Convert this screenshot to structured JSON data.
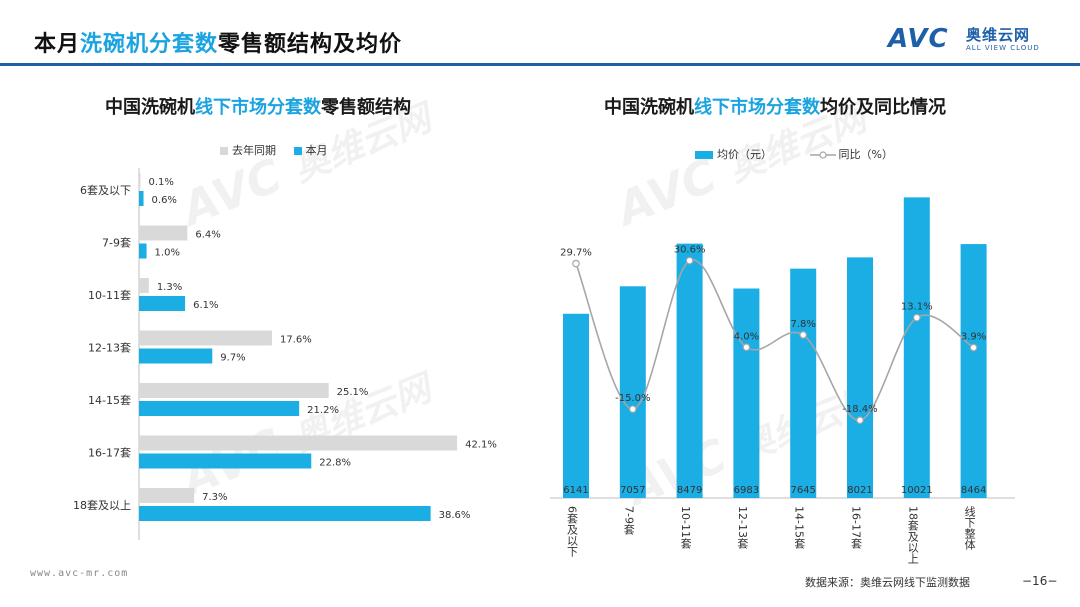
{
  "header": {
    "title_prefix": "本月",
    "title_highlight": "洗碗机分套数",
    "title_suffix": "零售额结构及均价",
    "logo_mark": "AVC",
    "logo_cn": "奥维云网",
    "logo_en": "ALL VIEW CLOUD"
  },
  "watermark": {
    "mark": "AVC",
    "cn": "奥维云网",
    "en": "ALL VIEW CLOUD"
  },
  "footer": {
    "url": "www.avc-mr.com",
    "source": "数据来源：奥维云网线下监测数据",
    "page": "−16−"
  },
  "colors": {
    "current": "#1aaee5",
    "last_year": "#d9d9d9",
    "line": "#a6a6a6",
    "title_accent": "#1aa3e0",
    "brand": "#1d5fa8"
  },
  "chart_data": [
    {
      "type": "bar",
      "orientation": "horizontal",
      "title_parts": {
        "prefix": "中国洗碗机",
        "highlight": "线下市场分套数",
        "suffix": "零售额结构"
      },
      "title": "中国洗碗机线下市场分套数零售额结构",
      "categories": [
        "6套及以下",
        "7-9套",
        "10-11套",
        "12-13套",
        "14-15套",
        "16-17套",
        "18套及以上"
      ],
      "series": [
        {
          "name": "去年同期",
          "values": [
            0.1,
            6.4,
            1.3,
            17.6,
            25.1,
            42.1,
            7.3
          ],
          "labels": [
            "0.1%",
            "6.4%",
            "1.3%",
            "17.6%",
            "25.1%",
            "42.1%",
            "7.3%"
          ]
        },
        {
          "name": "本月",
          "values": [
            0.6,
            1.0,
            6.1,
            9.7,
            21.2,
            22.8,
            38.6
          ],
          "labels": [
            "0.6%",
            "1.0%",
            "6.1%",
            "9.7%",
            "21.2%",
            "22.8%",
            "38.6%"
          ]
        }
      ],
      "xlim": [
        0,
        45
      ],
      "legend_position": "top",
      "grid": false
    },
    {
      "type": "bar",
      "combo": "bar+line",
      "title_parts": {
        "prefix": "中国洗碗机",
        "highlight": "线下市场分套数",
        "suffix": "均价及同比情况"
      },
      "title": "中国洗碗机线下市场分套数均价及同比情况",
      "categories": [
        "6套及以下",
        "7-9套",
        "10-11套",
        "12-13套",
        "14-15套",
        "16-17套",
        "18套及以上",
        "线下整体"
      ],
      "series": [
        {
          "name": "均价（元）",
          "type": "bar",
          "values": [
            6141,
            7057,
            8479,
            6983,
            7645,
            8021,
            10021,
            8464
          ],
          "labels": [
            "6141",
            "7057",
            "8479",
            "6983",
            "7645",
            "8021",
            "10021",
            "8464"
          ]
        },
        {
          "name": "同比（%）",
          "type": "line",
          "values": [
            29.7,
            -15.0,
            30.6,
            4.0,
            7.8,
            -18.4,
            13.1,
            3.9
          ],
          "labels": [
            "29.7%",
            "-15.0%",
            "30.6%",
            "4.0%",
            "7.8%",
            "-18.4%",
            "13.1%",
            "3.9%"
          ]
        }
      ],
      "ylim_bar": [
        0,
        11000
      ],
      "ylim_line": [
        -30,
        40
      ],
      "legend_position": "top",
      "grid": false
    }
  ]
}
